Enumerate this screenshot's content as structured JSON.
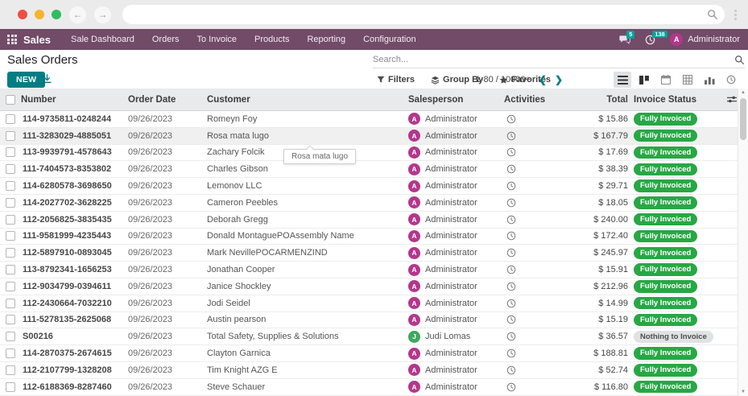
{
  "browser": {
    "url_value": "",
    "back_glyph": "←",
    "forward_glyph": "→"
  },
  "nav": {
    "app_name": "Sales",
    "menu_items": [
      "Sale Dashboard",
      "Orders",
      "To Invoice",
      "Products",
      "Reporting",
      "Configuration"
    ],
    "messages_badge": "5",
    "activities_badge": "138",
    "user_initial": "A",
    "user_name": "Administrator"
  },
  "control": {
    "title": "Sales Orders",
    "new_button": "NEW",
    "search_placeholder": "Search...",
    "filters_label": "Filters",
    "group_by_label": "Group By",
    "favorites_label": "Favorites",
    "pager_text": "1-80 / 10000+",
    "pager_prev": "❮",
    "pager_next": "❯"
  },
  "table": {
    "headers": [
      "Number",
      "Order Date",
      "Customer",
      "Salesperson",
      "Activities",
      "Total",
      "Invoice Status"
    ],
    "rows": [
      {
        "number": "114-9735811-0248244",
        "order_date": "09/26/2023",
        "customer": "Romeyn Foy",
        "salesperson": "Administrator",
        "salesperson_initial": "A",
        "avatar_color": "#b5368c",
        "total": "$ 15.86",
        "status": "Fully Invoiced",
        "status_type": "success",
        "hovered": false
      },
      {
        "number": "111-3283029-4885051",
        "order_date": "09/26/2023",
        "customer": "Rosa mata lugo",
        "salesperson": "Administrator",
        "salesperson_initial": "A",
        "avatar_color": "#b5368c",
        "total": "$ 167.79",
        "status": "Fully Invoiced",
        "status_type": "success",
        "hovered": true
      },
      {
        "number": "113-9939791-4578643",
        "order_date": "09/26/2023",
        "customer": "Zachary Folcik",
        "salesperson": "Administrator",
        "salesperson_initial": "A",
        "avatar_color": "#b5368c",
        "total": "$ 17.69",
        "status": "Fully Invoiced",
        "status_type": "success",
        "hovered": false
      },
      {
        "number": "111-7404573-8353802",
        "order_date": "09/26/2023",
        "customer": "Charles Gibson",
        "salesperson": "Administrator",
        "salesperson_initial": "A",
        "avatar_color": "#b5368c",
        "total": "$ 38.39",
        "status": "Fully Invoiced",
        "status_type": "success",
        "hovered": false
      },
      {
        "number": "114-6280578-3698650",
        "order_date": "09/26/2023",
        "customer": "Lemonov LLC",
        "salesperson": "Administrator",
        "salesperson_initial": "A",
        "avatar_color": "#b5368c",
        "total": "$ 29.71",
        "status": "Fully Invoiced",
        "status_type": "success",
        "hovered": false
      },
      {
        "number": "114-2027702-3628225",
        "order_date": "09/26/2023",
        "customer": "Cameron Peebles",
        "salesperson": "Administrator",
        "salesperson_initial": "A",
        "avatar_color": "#b5368c",
        "total": "$ 18.05",
        "status": "Fully Invoiced",
        "status_type": "success",
        "hovered": false
      },
      {
        "number": "112-2056825-3835435",
        "order_date": "09/26/2023",
        "customer": "Deborah Gregg",
        "salesperson": "Administrator",
        "salesperson_initial": "A",
        "avatar_color": "#b5368c",
        "total": "$ 240.00",
        "status": "Fully Invoiced",
        "status_type": "success",
        "hovered": false
      },
      {
        "number": "111-9581999-4235443",
        "order_date": "09/26/2023",
        "customer": "Donald MontaguePOAssembly Name",
        "salesperson": "Administrator",
        "salesperson_initial": "A",
        "avatar_color": "#b5368c",
        "total": "$ 172.40",
        "status": "Fully Invoiced",
        "status_type": "success",
        "hovered": false
      },
      {
        "number": "112-5897910-0893045",
        "order_date": "09/26/2023",
        "customer": "Mark NevillePOCARMENZIND",
        "salesperson": "Administrator",
        "salesperson_initial": "A",
        "avatar_color": "#b5368c",
        "total": "$ 245.97",
        "status": "Fully Invoiced",
        "status_type": "success",
        "hovered": false
      },
      {
        "number": "113-8792341-1656253",
        "order_date": "09/26/2023",
        "customer": "Jonathan Cooper",
        "salesperson": "Administrator",
        "salesperson_initial": "A",
        "avatar_color": "#b5368c",
        "total": "$ 15.91",
        "status": "Fully Invoiced",
        "status_type": "success",
        "hovered": false
      },
      {
        "number": "112-9034799-0394611",
        "order_date": "09/26/2023",
        "customer": "Janice Shockley",
        "salesperson": "Administrator",
        "salesperson_initial": "A",
        "avatar_color": "#b5368c",
        "total": "$ 212.96",
        "status": "Fully Invoiced",
        "status_type": "success",
        "hovered": false
      },
      {
        "number": "112-2430664-7032210",
        "order_date": "09/26/2023",
        "customer": "Jodi Seidel",
        "salesperson": "Administrator",
        "salesperson_initial": "A",
        "avatar_color": "#b5368c",
        "total": "$ 14.99",
        "status": "Fully Invoiced",
        "status_type": "success",
        "hovered": false
      },
      {
        "number": "111-5278135-2625068",
        "order_date": "09/26/2023",
        "customer": "Austin pearson",
        "salesperson": "Administrator",
        "salesperson_initial": "A",
        "avatar_color": "#b5368c",
        "total": "$ 15.19",
        "status": "Fully Invoiced",
        "status_type": "success",
        "hovered": false
      },
      {
        "number": "S00216",
        "order_date": "09/26/2023",
        "customer": "Total Safety, Supplies & Solutions",
        "salesperson": "Judi Lomas",
        "salesperson_initial": "J",
        "avatar_color": "#3fa75f",
        "total": "$ 36.57",
        "status": "Nothing to Invoice",
        "status_type": "muted",
        "hovered": false
      },
      {
        "number": "114-2870375-2674615",
        "order_date": "09/26/2023",
        "customer": "Clayton Garnica",
        "salesperson": "Administrator",
        "salesperson_initial": "A",
        "avatar_color": "#b5368c",
        "total": "$ 188.81",
        "status": "Fully Invoiced",
        "status_type": "success",
        "hovered": false
      },
      {
        "number": "112-2107799-1328208",
        "order_date": "09/26/2023",
        "customer": "Tim Knight AZG E",
        "salesperson": "Administrator",
        "salesperson_initial": "A",
        "avatar_color": "#b5368c",
        "total": "$ 52.74",
        "status": "Fully Invoiced",
        "status_type": "success",
        "hovered": false
      },
      {
        "number": "112-6188369-8287460",
        "order_date": "09/26/2023",
        "customer": "Steve Schauer",
        "salesperson": "Administrator",
        "salesperson_initial": "A",
        "avatar_color": "#b5368c",
        "total": "$ 116.80",
        "status": "Fully Invoiced",
        "status_type": "success",
        "hovered": false
      }
    ]
  },
  "tooltip": {
    "text": "Rosa mata lugo"
  },
  "colors": {
    "nav_purple": "#714B67",
    "accent_teal": "#017E84",
    "badge_teal": "#00A09D",
    "success_green": "#28a745",
    "muted_pill": "#e0e2e4",
    "admin_avatar": "#b5368c",
    "judi_avatar": "#3fa75f"
  }
}
